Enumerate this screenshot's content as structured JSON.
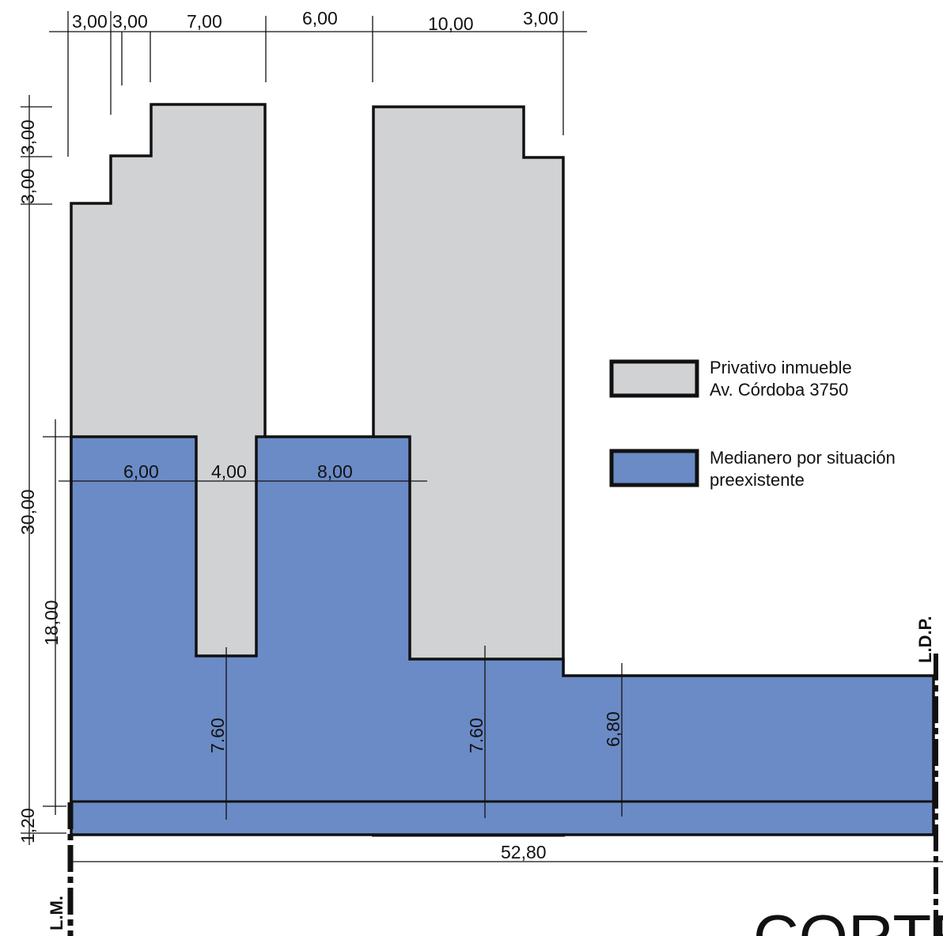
{
  "colors": {
    "private_fill": "#d1d2d4",
    "shared_fill": "#6b8bc6",
    "outline": "#111111"
  },
  "top_dims": [
    "3,00",
    "3,00",
    "7,00",
    "6,00",
    "10,00",
    "3,00"
  ],
  "left_dims": {
    "step_upper": "3,00",
    "step_lower": "3,00",
    "total_height": "30,00",
    "shared_height": "18,00",
    "base": "1,20"
  },
  "inner_dims": {
    "shared_widths": [
      "6,00",
      "4,00",
      "8,00"
    ],
    "heights": [
      "7.60",
      "7.60",
      "6,80"
    ]
  },
  "bottom_dim": "52,80",
  "labels": {
    "lm": "L.M.",
    "ldp": "L.D.P."
  },
  "legend": [
    {
      "text_line1": "Privativo inmueble",
      "text_line2": "Av. Córdoba 3750",
      "swatch": "private"
    },
    {
      "text_line1": "Medianero por situación",
      "text_line2": "preexistente",
      "swatch": "shared"
    }
  ],
  "title": "CORTE"
}
